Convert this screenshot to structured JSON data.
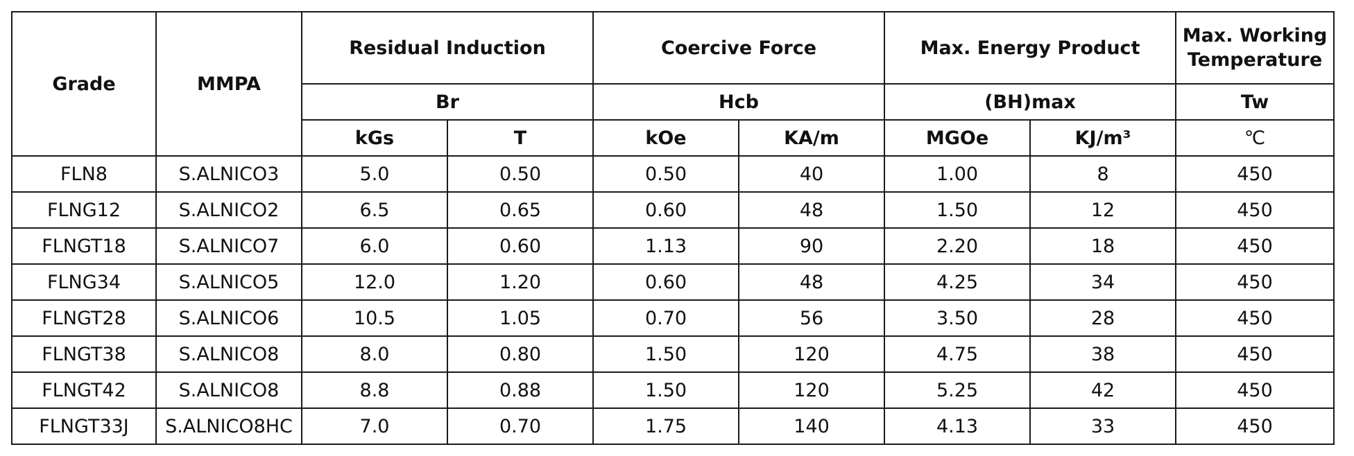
{
  "table": {
    "headers": {
      "grade": "Grade",
      "mmpa": "MMPA",
      "residual_induction": "Residual Induction",
      "coercive_force": "Coercive Force",
      "max_energy_product": "Max. Energy Product",
      "max_working_temperature": "Max. Working Temperature",
      "br": "Br",
      "hcb": "Hcb",
      "bhmax": "(BH)max",
      "tw": "Tw",
      "kgs": "kGs",
      "t": "T",
      "koe": "kOe",
      "ka_m": "KA/m",
      "mgoe": "MGOe",
      "kj_m3": "KJ/m³",
      "celsius": "℃"
    },
    "rows": [
      [
        "FLN8",
        "S.ALNICO3",
        "5.0",
        "0.50",
        "0.50",
        "40",
        "1.00",
        "8",
        "450"
      ],
      [
        "FLNG12",
        "S.ALNICO2",
        "6.5",
        "0.65",
        "0.60",
        "48",
        "1.50",
        "12",
        "450"
      ],
      [
        "FLNGT18",
        "S.ALNICO7",
        "6.0",
        "0.60",
        "1.13",
        "90",
        "2.20",
        "18",
        "450"
      ],
      [
        "FLNG34",
        "S.ALNICO5",
        "12.0",
        "1.20",
        "0.60",
        "48",
        "4.25",
        "34",
        "450"
      ],
      [
        "FLNGT28",
        "S.ALNICO6",
        "10.5",
        "1.05",
        "0.70",
        "56",
        "3.50",
        "28",
        "450"
      ],
      [
        "FLNGT38",
        "S.ALNICO8",
        "8.0",
        "0.80",
        "1.50",
        "120",
        "4.75",
        "38",
        "450"
      ],
      [
        "FLNGT42",
        "S.ALNICO8",
        "8.8",
        "0.88",
        "1.50",
        "120",
        "5.25",
        "42",
        "450"
      ],
      [
        "FLNGT33J",
        "S.ALNICO8HC",
        "7.0",
        "0.70",
        "1.75",
        "140",
        "4.13",
        "33",
        "450"
      ]
    ]
  }
}
